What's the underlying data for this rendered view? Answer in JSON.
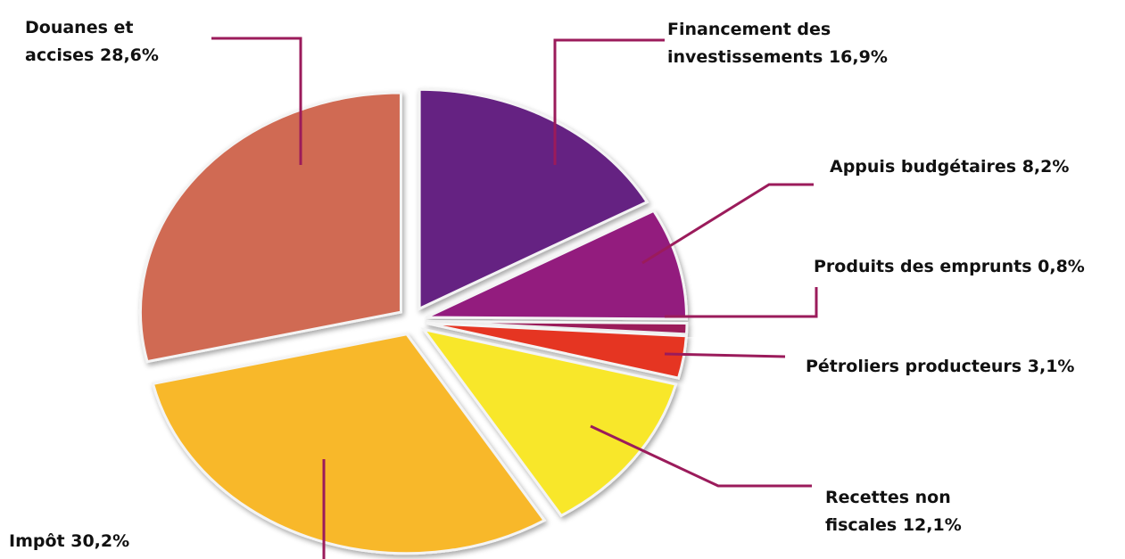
{
  "chart_data": {
    "type": "pie",
    "categories": [
      "Financement des investissements",
      "Appuis budgétaires",
      "Produits des emprunts",
      "Pétroliers producteurs",
      "Recettes non fiscales",
      "Impôt",
      "Douanes et accises"
    ],
    "values": [
      16.9,
      8.2,
      0.8,
      3.1,
      12.1,
      30.2,
      28.6
    ],
    "value_labels": [
      "16,9%",
      "8,2%",
      "0,8%",
      "3,1%",
      "12,1%",
      "30,2%",
      "28,6%"
    ],
    "colors": [
      "#652382",
      "#931b7e",
      "#9b1a5a",
      "#e53424",
      "#f8e72c",
      "#f8b82b",
      "#d06a52"
    ]
  }
}
